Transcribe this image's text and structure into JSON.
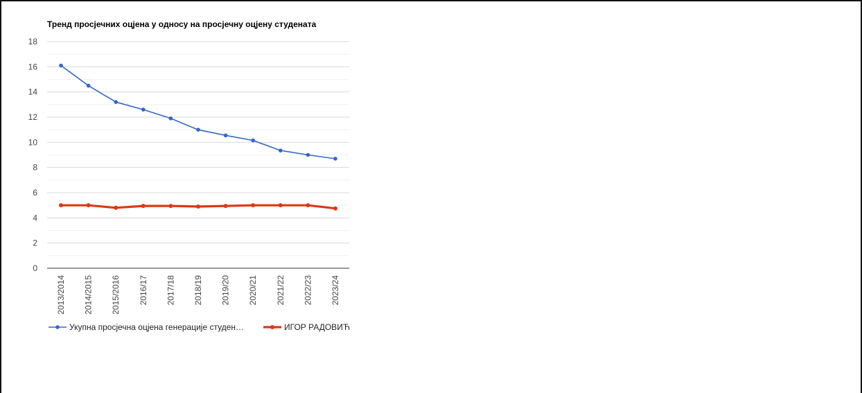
{
  "chart_data": {
    "type": "line",
    "title": "Тренд просјечних оцјена у односу на просјечну оцјену студената",
    "xlabel": "",
    "ylabel": "",
    "ylim": [
      0,
      18
    ],
    "yticks": [
      0,
      2,
      4,
      6,
      8,
      10,
      12,
      14,
      16,
      18
    ],
    "grid": true,
    "legend_position": "bottom",
    "categories": [
      "2013/2014",
      "2014/2015",
      "2015/2016",
      "2016/17",
      "2017/18",
      "2018/19",
      "2019/20",
      "2020/21",
      "2021/22",
      "2022/23",
      "2023/24"
    ],
    "series": [
      {
        "name": "Укупна просјечна оцјена генерације студен…",
        "color": "#3366cc",
        "values": [
          16.1,
          14.5,
          13.2,
          12.6,
          11.9,
          11.0,
          10.55,
          10.15,
          9.35,
          9.0,
          8.7
        ]
      },
      {
        "name": "ИГОР РАДОВИЋ",
        "color": "#dc3912",
        "values": [
          5.0,
          5.0,
          4.8,
          4.95,
          4.95,
          4.9,
          4.95,
          5.0,
          5.0,
          5.0,
          4.75
        ]
      }
    ]
  }
}
